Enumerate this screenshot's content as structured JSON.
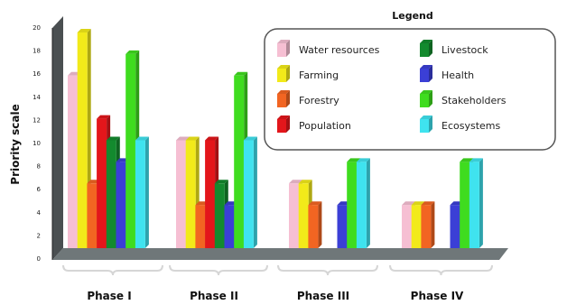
{
  "chart_data": {
    "type": "bar",
    "ylabel": "Priority scale",
    "xlabel": "",
    "ylim": [
      0,
      20
    ],
    "yticks": [
      0,
      2,
      4,
      6,
      8,
      10,
      12,
      14,
      16,
      18,
      20
    ],
    "categories": [
      "Phase I",
      "Phase II",
      "Phase III",
      "Phase IV"
    ],
    "legend_title": "Legend",
    "legend_position": "top-right",
    "grid": false,
    "series": [
      {
        "name": "Water resources",
        "color": "#f6bfd3",
        "values": [
          16,
          10,
          6,
          4
        ]
      },
      {
        "name": "Farming",
        "color": "#f2ea1a",
        "values": [
          20,
          10,
          6,
          4
        ]
      },
      {
        "name": "Forestry",
        "color": "#f26522",
        "values": [
          6,
          4,
          4,
          4
        ]
      },
      {
        "name": "Population",
        "color": "#e3161b",
        "values": [
          12,
          10,
          0,
          0
        ]
      },
      {
        "name": "Livestock",
        "color": "#138a2e",
        "values": [
          10,
          6,
          0,
          0
        ]
      },
      {
        "name": "Health",
        "color": "#3b3fd6",
        "values": [
          8,
          4,
          4,
          4
        ]
      },
      {
        "name": "Stakeholders",
        "color": "#3fdc1f",
        "values": [
          18,
          16,
          8,
          8
        ]
      },
      {
        "name": "Ecosystems",
        "color": "#3fe3ef",
        "values": [
          10,
          10,
          8,
          8
        ]
      }
    ]
  }
}
